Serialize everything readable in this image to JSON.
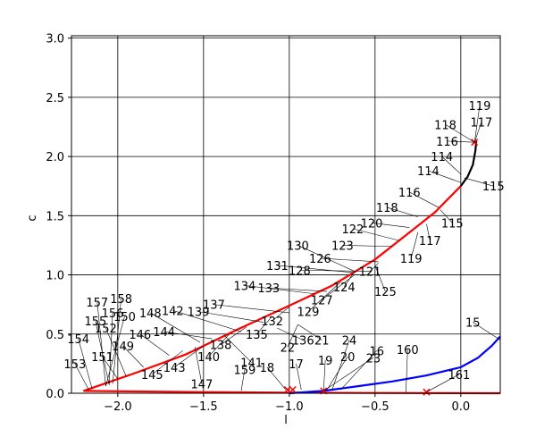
{
  "chart_data": {
    "type": "line",
    "xlabel": "l",
    "ylabel": "c",
    "xlim": [
      -2.27,
      0.23
    ],
    "ylim": [
      0.0,
      3.02
    ],
    "x_ticks": [
      -2.0,
      -1.5,
      -1.0,
      -0.5,
      0.0
    ],
    "y_ticks": [
      0.0,
      0.5,
      1.0,
      1.5,
      2.0,
      2.5,
      3.0
    ],
    "x_tick_labels": [
      "−2.0",
      "−1.5",
      "−1.0",
      "−0.5",
      "0.0"
    ],
    "y_tick_labels": [
      "0.0",
      "0.5",
      "1.0",
      "1.5",
      "2.0",
      "2.5",
      "3.0"
    ],
    "grid": true,
    "series": [
      {
        "color": "#ff0000",
        "points": [
          [
            -2.2,
            0.02
          ],
          [
            -1.9,
            0.17
          ],
          [
            -1.6,
            0.33
          ],
          [
            -1.3,
            0.54
          ],
          [
            -1.0,
            0.74
          ],
          [
            -0.75,
            0.91
          ],
          [
            -0.5,
            1.13
          ],
          [
            -0.35,
            1.3
          ],
          [
            -0.15,
            1.53
          ],
          [
            0.0,
            1.75
          ]
        ]
      },
      {
        "color": "#ff0000",
        "points": [
          [
            -2.2,
            0.02
          ],
          [
            -1.5,
            0.01
          ],
          [
            -1.0,
            0.005
          ],
          [
            -0.5,
            0.002
          ],
          [
            0.0,
            0.001
          ],
          [
            0.23,
            0.0
          ]
        ]
      },
      {
        "color": "#000000",
        "points": [
          [
            0.0,
            1.75
          ],
          [
            0.04,
            1.83
          ],
          [
            0.07,
            1.93
          ],
          [
            0.085,
            2.05
          ],
          [
            0.09,
            2.13
          ]
        ]
      },
      {
        "color": "#0000ff",
        "points": [
          [
            -1.0,
            0.0
          ],
          [
            -0.8,
            0.02
          ],
          [
            -0.6,
            0.06
          ],
          [
            -0.4,
            0.1
          ],
          [
            -0.2,
            0.15
          ],
          [
            0.0,
            0.22
          ],
          [
            0.1,
            0.3
          ],
          [
            0.18,
            0.4
          ],
          [
            0.23,
            0.48
          ]
        ]
      }
    ],
    "markers": [
      {
        "x": 0.08,
        "y": 2.12
      },
      {
        "x": -1.01,
        "y": 0.03
      },
      {
        "x": -0.98,
        "y": 0.03
      },
      {
        "x": -0.8,
        "y": 0.02
      },
      {
        "x": -0.2,
        "y": 0.01
      }
    ],
    "annotations": [
      {
        "text": "119",
        "tx": 0.11,
        "ty": 2.43,
        "px": 0.08,
        "py": 2.12
      },
      {
        "text": "117",
        "tx": 0.12,
        "ty": 2.29,
        "px": 0.08,
        "py": 2.12
      },
      {
        "text": "118",
        "tx": -0.09,
        "ty": 2.27,
        "px": 0.08,
        "py": 2.12
      },
      {
        "text": "116",
        "tx": -0.08,
        "ty": 2.13,
        "px": 0.08,
        "py": 2.12
      },
      {
        "text": "114",
        "tx": -0.11,
        "ty": 2.0,
        "px": 0.0,
        "py": 1.85
      },
      {
        "text": "114",
        "tx": -0.19,
        "ty": 1.88,
        "px": 0.0,
        "py": 1.78
      },
      {
        "text": "115",
        "tx": 0.19,
        "ty": 1.75,
        "px": 0.02,
        "py": 1.82
      },
      {
        "text": "116",
        "tx": -0.3,
        "ty": 1.7,
        "px": -0.13,
        "py": 1.57
      },
      {
        "text": "118",
        "tx": -0.43,
        "ty": 1.57,
        "px": -0.25,
        "py": 1.49
      },
      {
        "text": "115",
        "tx": -0.05,
        "ty": 1.44,
        "px": -0.12,
        "py": 1.55
      },
      {
        "text": "120",
        "tx": -0.52,
        "ty": 1.44,
        "px": -0.3,
        "py": 1.4
      },
      {
        "text": "122",
        "tx": -0.63,
        "ty": 1.39,
        "px": -0.36,
        "py": 1.29
      },
      {
        "text": "117",
        "tx": -0.18,
        "ty": 1.29,
        "px": -0.2,
        "py": 1.43
      },
      {
        "text": "123",
        "tx": -0.69,
        "ty": 1.25,
        "px": -0.4,
        "py": 1.24
      },
      {
        "text": "130",
        "tx": -0.95,
        "ty": 1.25,
        "px": -0.62,
        "py": 1.03
      },
      {
        "text": "119",
        "tx": -0.29,
        "ty": 1.14,
        "px": -0.25,
        "py": 1.36
      },
      {
        "text": "126",
        "tx": -0.82,
        "ty": 1.14,
        "px": -0.48,
        "py": 1.11
      },
      {
        "text": "131",
        "tx": -1.07,
        "ty": 1.08,
        "px": -0.63,
        "py": 1.02
      },
      {
        "text": "121",
        "tx": -0.53,
        "ty": 1.03,
        "px": -0.48,
        "py": 1.1
      },
      {
        "text": "128",
        "tx": -0.94,
        "ty": 1.04,
        "px": -0.52,
        "py": 1.03
      },
      {
        "text": "124",
        "tx": -0.68,
        "ty": 0.9,
        "px": -0.62,
        "py": 1.03
      },
      {
        "text": "134",
        "tx": -1.26,
        "ty": 0.91,
        "px": -0.85,
        "py": 0.84
      },
      {
        "text": "125",
        "tx": -0.44,
        "ty": 0.86,
        "px": -0.5,
        "py": 1.08
      },
      {
        "text": "133",
        "tx": -1.12,
        "ty": 0.89,
        "px": -0.78,
        "py": 0.86
      },
      {
        "text": "127",
        "tx": -0.81,
        "ty": 0.79,
        "px": -0.62,
        "py": 1.0
      },
      {
        "text": "137",
        "tx": -1.44,
        "ty": 0.75,
        "px": -1.0,
        "py": 0.68
      },
      {
        "text": "129",
        "tx": -0.89,
        "ty": 0.69,
        "px": -0.7,
        "py": 0.94
      },
      {
        "text": "142",
        "tx": -1.68,
        "ty": 0.7,
        "px": -1.28,
        "py": 0.52
      },
      {
        "text": "148",
        "tx": -1.81,
        "ty": 0.68,
        "px": -1.52,
        "py": 0.43
      },
      {
        "text": "139",
        "tx": -1.53,
        "ty": 0.69,
        "px": -1.15,
        "py": 0.6
      },
      {
        "text": "157",
        "tx": -2.12,
        "ty": 0.77,
        "px": -2.07,
        "py": 0.06
      },
      {
        "text": "158",
        "tx": -1.98,
        "ty": 0.8,
        "px": -2.03,
        "py": 0.08
      },
      {
        "text": "156",
        "tx": -2.03,
        "ty": 0.68,
        "px": -2.05,
        "py": 0.07
      },
      {
        "text": "150",
        "tx": -1.96,
        "ty": 0.65,
        "px": -2.07,
        "py": 0.06
      },
      {
        "text": "155",
        "tx": -2.13,
        "ty": 0.61,
        "px": -2.05,
        "py": 0.07
      },
      {
        "text": "132",
        "tx": -1.1,
        "ty": 0.61,
        "px": -1.0,
        "py": 0.73
      },
      {
        "text": "152",
        "tx": -2.07,
        "ty": 0.55,
        "px": -1.95,
        "py": 0.14
      },
      {
        "text": "146",
        "tx": -1.87,
        "ty": 0.5,
        "px": -1.7,
        "py": 0.32
      },
      {
        "text": "144",
        "tx": -1.73,
        "ty": 0.52,
        "px": -1.45,
        "py": 0.46
      },
      {
        "text": "135",
        "tx": -1.19,
        "ty": 0.5,
        "px": -1.1,
        "py": 0.65
      },
      {
        "text": "154",
        "tx": -2.23,
        "ty": 0.46,
        "px": -2.15,
        "py": 0.04
      },
      {
        "text": "136",
        "tx": -0.92,
        "ty": 0.45,
        "px": -1.07,
        "py": 0.55
      },
      {
        "text": "21",
        "tx": -0.81,
        "ty": 0.45,
        "px": -0.95,
        "py": 0.58
      },
      {
        "text": "24",
        "tx": -0.65,
        "ty": 0.45,
        "px": -0.75,
        "py": 0.03
      },
      {
        "text": "138",
        "tx": -1.4,
        "ty": 0.41,
        "px": -1.25,
        "py": 0.56
      },
      {
        "text": "22",
        "tx": -1.01,
        "ty": 0.39,
        "px": -0.95,
        "py": 0.58
      },
      {
        "text": "149",
        "tx": -1.97,
        "ty": 0.4,
        "px": -1.85,
        "py": 0.22
      },
      {
        "text": "16",
        "tx": -0.49,
        "ty": 0.36,
        "px": -0.7,
        "py": 0.03
      },
      {
        "text": "160",
        "tx": -0.31,
        "ty": 0.37,
        "px": -0.32,
        "py": 0.01
      },
      {
        "text": "15",
        "tx": 0.07,
        "ty": 0.6,
        "px": 0.23,
        "py": 0.45
      },
      {
        "text": "151",
        "tx": -2.09,
        "ty": 0.31,
        "px": -2.0,
        "py": 0.12
      },
      {
        "text": "140",
        "tx": -1.47,
        "ty": 0.31,
        "px": -1.35,
        "py": 0.5
      },
      {
        "text": "20",
        "tx": -0.66,
        "ty": 0.31,
        "px": -0.78,
        "py": 0.03
      },
      {
        "text": "23",
        "tx": -0.51,
        "ty": 0.3,
        "px": -0.8,
        "py": 0.02
      },
      {
        "text": "19",
        "tx": -0.79,
        "ty": 0.28,
        "px": -0.8,
        "py": 0.02
      },
      {
        "text": "153",
        "tx": -2.25,
        "ty": 0.25,
        "px": -2.17,
        "py": 0.03
      },
      {
        "text": "141",
        "tx": -1.22,
        "ty": 0.26,
        "px": -1.38,
        "py": 0.49
      },
      {
        "text": "17",
        "tx": -0.96,
        "ty": 0.25,
        "px": -0.93,
        "py": 0.03
      },
      {
        "text": "143",
        "tx": -1.67,
        "ty": 0.22,
        "px": -1.5,
        "py": 0.4
      },
      {
        "text": "159",
        "tx": -1.26,
        "ty": 0.2,
        "px": -1.28,
        "py": 0.02
      },
      {
        "text": "18",
        "tx": -1.13,
        "ty": 0.22,
        "px": -1.02,
        "py": 0.03
      },
      {
        "text": "145",
        "tx": -1.8,
        "ty": 0.16,
        "px": -1.62,
        "py": 0.36
      },
      {
        "text": "161",
        "tx": -0.01,
        "ty": 0.16,
        "px": -0.2,
        "py": 0.01
      },
      {
        "text": "147",
        "tx": -1.51,
        "ty": 0.08,
        "px": -1.55,
        "py": 0.39
      }
    ]
  }
}
